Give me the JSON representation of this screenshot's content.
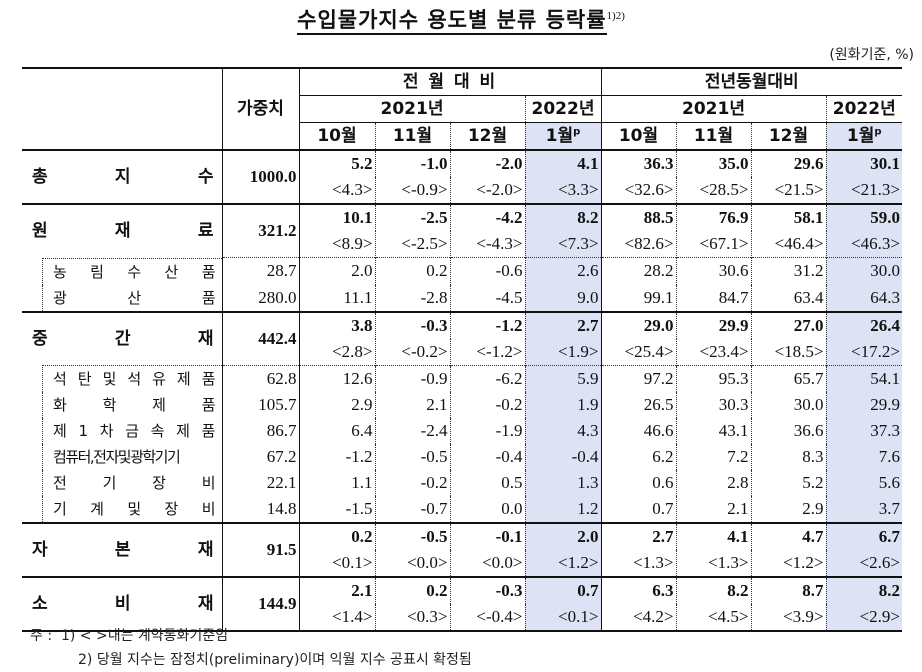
{
  "title": "수입물가지수 용도별 분류 등락률",
  "title_sup": "1)2)",
  "unit": "(원화기준, %)",
  "header": {
    "weight": "가중치",
    "group_mom": "전 월 대 비",
    "group_yoy": "전년동월대비",
    "year_2021": "2021년",
    "year_2022": "2022년",
    "months": [
      "10월",
      "11월",
      "12월",
      "1월"
    ],
    "prelim_mark": "p"
  },
  "rows": [
    {
      "label": [
        "총",
        "지",
        "수"
      ],
      "weight": "1000.0",
      "bold": true,
      "mom": [
        "5.2",
        "-1.0",
        "-2.0",
        "4.1"
      ],
      "mom_contract": [
        "<4.3>",
        "<-0.9>",
        "<-2.0>",
        "<3.3>"
      ],
      "yoy": [
        "36.3",
        "35.0",
        "29.6",
        "30.1"
      ],
      "yoy_contract": [
        "<32.6>",
        "<28.5>",
        "<21.5>",
        "<21.3>"
      ]
    },
    {
      "label": [
        "원",
        "재",
        "료"
      ],
      "weight": "321.2",
      "bold": true,
      "mom": [
        "10.1",
        "-2.5",
        "-4.2",
        "8.2"
      ],
      "mom_contract": [
        "<8.9>",
        "<-2.5>",
        "<-4.3>",
        "<7.3>"
      ],
      "yoy": [
        "88.5",
        "76.9",
        "58.1",
        "59.0"
      ],
      "yoy_contract": [
        "<82.6>",
        "<67.1>",
        "<46.4>",
        "<46.3>"
      ]
    },
    {
      "label": [
        "농",
        "림",
        "수",
        "산",
        "품"
      ],
      "weight": "28.7",
      "sub": true,
      "mom": [
        "2.0",
        "0.2",
        "-0.6",
        "2.6"
      ],
      "yoy": [
        "28.2",
        "30.6",
        "31.2",
        "30.0"
      ]
    },
    {
      "label": [
        "광",
        "산",
        "품"
      ],
      "weight": "280.0",
      "sub": true,
      "mom": [
        "11.1",
        "-2.8",
        "-4.5",
        "9.0"
      ],
      "yoy": [
        "99.1",
        "84.7",
        "63.4",
        "64.3"
      ]
    },
    {
      "label": [
        "중",
        "간",
        "재"
      ],
      "weight": "442.4",
      "bold": true,
      "mom": [
        "3.8",
        "-0.3",
        "-1.2",
        "2.7"
      ],
      "mom_contract": [
        "<2.8>",
        "<-0.2>",
        "<-1.2>",
        "<1.9>"
      ],
      "yoy": [
        "29.0",
        "29.9",
        "27.0",
        "26.4"
      ],
      "yoy_contract": [
        "<25.4>",
        "<23.4>",
        "<18.5>",
        "<17.2>"
      ]
    },
    {
      "label": [
        "석",
        "탄",
        "및",
        "석",
        "유",
        "제",
        "품"
      ],
      "weight": "62.8",
      "sub": true,
      "mom": [
        "12.6",
        "-0.9",
        "-6.2",
        "5.9"
      ],
      "yoy": [
        "97.2",
        "95.3",
        "65.7",
        "54.1"
      ]
    },
    {
      "label": [
        "화",
        "학",
        "제",
        "품"
      ],
      "weight": "105.7",
      "sub": true,
      "mom": [
        "2.9",
        "2.1",
        "-0.2",
        "1.9"
      ],
      "yoy": [
        "26.5",
        "30.3",
        "30.0",
        "29.9"
      ]
    },
    {
      "label": [
        "제",
        "1",
        "차",
        "금",
        "속",
        "제",
        "품"
      ],
      "weight": "86.7",
      "sub": true,
      "mom": [
        "6.4",
        "-2.4",
        "-1.9",
        "4.3"
      ],
      "yoy": [
        "46.6",
        "43.1",
        "36.6",
        "37.3"
      ]
    },
    {
      "label": [
        "컴퓨터,전자및광학기기"
      ],
      "weight": "67.2",
      "sub": true,
      "tight": true,
      "mom": [
        "-1.2",
        "-0.5",
        "-0.4",
        "-0.4"
      ],
      "yoy": [
        "6.2",
        "7.2",
        "8.3",
        "7.6"
      ]
    },
    {
      "label": [
        "전",
        "기",
        "장",
        "비"
      ],
      "weight": "22.1",
      "sub": true,
      "mom": [
        "1.1",
        "-0.2",
        "0.5",
        "1.3"
      ],
      "yoy": [
        "0.6",
        "2.8",
        "5.2",
        "5.6"
      ]
    },
    {
      "label": [
        "기",
        "계",
        "및",
        "장",
        "비"
      ],
      "weight": "14.8",
      "sub": true,
      "mom": [
        "-1.5",
        "-0.7",
        "0.0",
        "1.2"
      ],
      "yoy": [
        "0.7",
        "2.1",
        "2.9",
        "3.7"
      ]
    },
    {
      "label": [
        "자",
        "본",
        "재"
      ],
      "weight": "91.5",
      "bold": true,
      "mom": [
        "0.2",
        "-0.5",
        "-0.1",
        "2.0"
      ],
      "mom_contract": [
        "<0.1>",
        "<0.0>",
        "<0.0>",
        "<1.2>"
      ],
      "yoy": [
        "2.7",
        "4.1",
        "4.7",
        "6.7"
      ],
      "yoy_contract": [
        "<1.3>",
        "<1.3>",
        "<1.2>",
        "<2.6>"
      ]
    },
    {
      "label": [
        "소",
        "비",
        "재"
      ],
      "weight": "144.9",
      "bold": true,
      "mom": [
        "2.1",
        "0.2",
        "-0.3",
        "0.7"
      ],
      "mom_contract": [
        "<1.4>",
        "<0.3>",
        "<-0.4>",
        "<0.1>"
      ],
      "yoy": [
        "6.3",
        "8.2",
        "8.7",
        "8.2"
      ],
      "yoy_contract": [
        "<4.2>",
        "<4.5>",
        "<3.9>",
        "<2.9>"
      ]
    }
  ],
  "notes": {
    "prefix": "주 :",
    "note1": "1) < >내는 계약통화기준임",
    "note2": "2) 당월 지수는 잠정치(preliminary)이며 익월 지수 공표시 확정됨"
  },
  "colors": {
    "highlight": "#dde3f4",
    "line": "#111111"
  }
}
